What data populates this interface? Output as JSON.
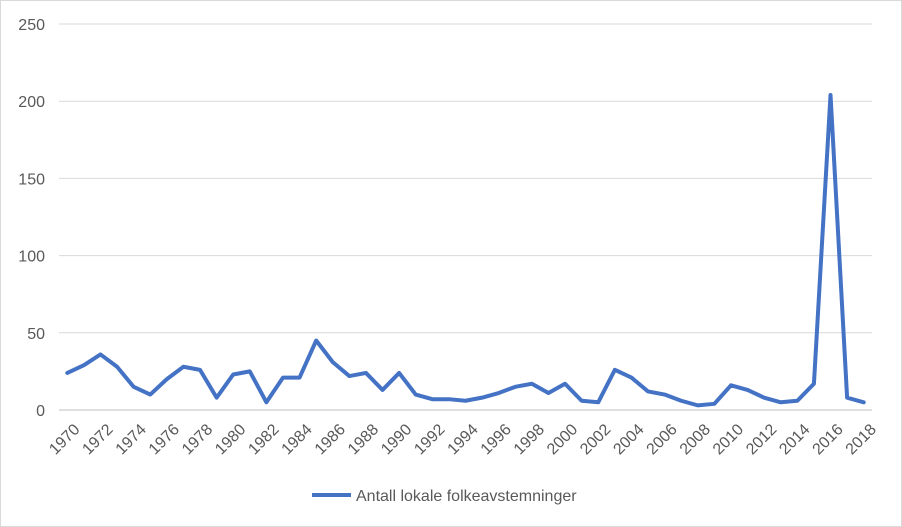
{
  "chart_data": {
    "type": "line",
    "title": "",
    "xlabel": "",
    "ylabel": "",
    "ylim": [
      0,
      250
    ],
    "y_ticks": [
      "0",
      "50",
      "100",
      "150",
      "200",
      "250"
    ],
    "x": [
      1970,
      1971,
      1972,
      1973,
      1974,
      1975,
      1976,
      1977,
      1978,
      1979,
      1980,
      1981,
      1982,
      1983,
      1984,
      1985,
      1986,
      1987,
      1988,
      1989,
      1990,
      1991,
      1992,
      1993,
      1994,
      1995,
      1996,
      1997,
      1998,
      1999,
      2000,
      2001,
      2002,
      2003,
      2004,
      2005,
      2006,
      2007,
      2008,
      2009,
      2010,
      2011,
      2012,
      2013,
      2014,
      2015,
      2016,
      2017,
      2018
    ],
    "x_tick_labels": [
      "1970",
      "1972",
      "1974",
      "1976",
      "1978",
      "1980",
      "1982",
      "1984",
      "1986",
      "1988",
      "1990",
      "1992",
      "1994",
      "1996",
      "1998",
      "2000",
      "2002",
      "2004",
      "2006",
      "2008",
      "2010",
      "2012",
      "2014",
      "2016",
      "2018"
    ],
    "series": [
      {
        "name": "Antall lokale folkeavstemninger",
        "color": "#4472c4",
        "values": [
          24,
          29,
          36,
          28,
          15,
          10,
          20,
          28,
          26,
          8,
          23,
          25,
          5,
          21,
          21,
          45,
          31,
          22,
          24,
          13,
          24,
          10,
          7,
          7,
          6,
          8,
          11,
          15,
          17,
          11,
          17,
          6,
          5,
          26,
          21,
          12,
          10,
          6,
          3,
          4,
          16,
          13,
          8,
          5,
          6,
          17,
          204,
          8,
          5
        ]
      }
    ],
    "grid": true,
    "legend": "bottom"
  }
}
